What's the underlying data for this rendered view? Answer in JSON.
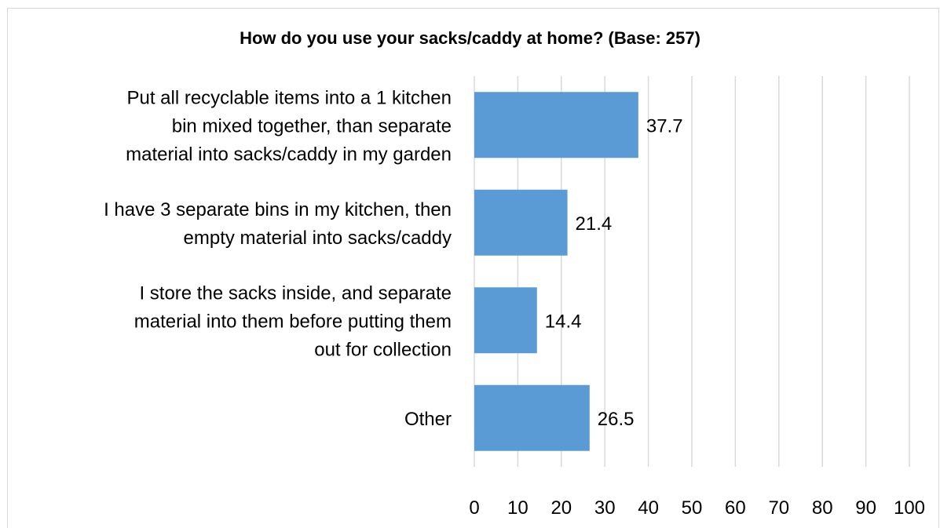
{
  "chart_data": {
    "type": "bar",
    "orientation": "horizontal",
    "title": "How do you use your sacks/caddy at home? (Base: 257)",
    "categories": [
      [
        "Put all recyclable items into a 1 kitchen",
        "bin mixed together, than separate",
        "material into sacks/caddy in my garden"
      ],
      [
        "I have 3 separate bins in my kitchen, then",
        "empty material into sacks/caddy"
      ],
      [
        "I store the sacks inside, and separate",
        "material into them before putting them",
        "out for collection"
      ],
      [
        "Other"
      ]
    ],
    "values": [
      37.7,
      21.4,
      14.4,
      26.5
    ],
    "data_labels": [
      "37.7",
      "21.4",
      "14.4",
      "26.5"
    ],
    "xlim": [
      0,
      100
    ],
    "ticks": [
      "0",
      "10",
      "20",
      "30",
      "40",
      "50",
      "60",
      "70",
      "80",
      "90",
      "100"
    ],
    "grid": true,
    "legend": "none",
    "bar_color": "#5b9bd5",
    "grid_color": "#d9d9d9"
  }
}
